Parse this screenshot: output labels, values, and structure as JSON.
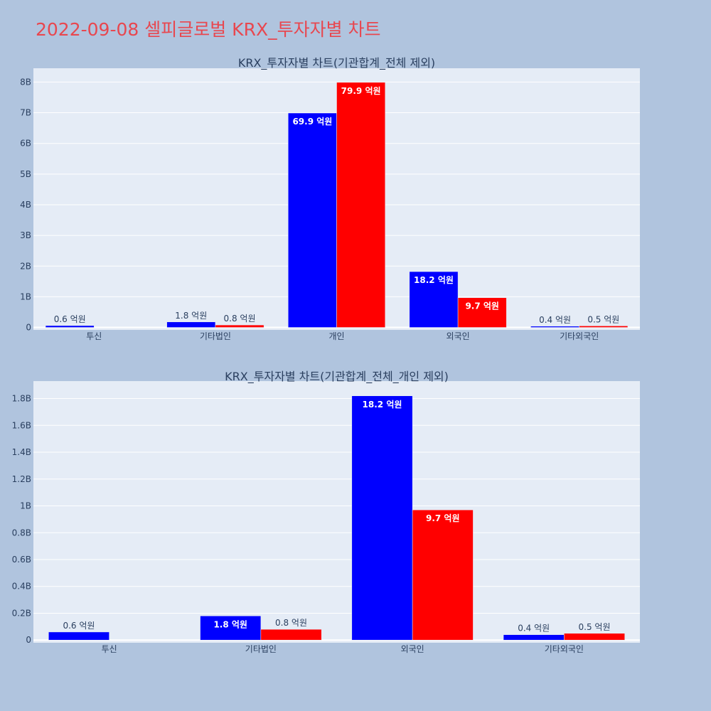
{
  "title": "2022-09-08 셀피글로벌 KRX_투자자별 차트",
  "colors": {
    "page_bg": "#b0c4de",
    "plot_bg": "#e5ecf6",
    "grid": "#ffffff",
    "series_a": "#0000ff",
    "series_b": "#ff0000",
    "title": "#e8474f",
    "text": "#2a3f5f"
  },
  "chart_data": [
    {
      "type": "bar",
      "title": "KRX_투자자별 차트(기관합계_전체 제외)",
      "categories": [
        "투신",
        "기타법인",
        "개인",
        "외국인",
        "기타외국인"
      ],
      "ylim": [
        -0.08,
        8.45
      ],
      "ytick_values": [
        0,
        1,
        2,
        3,
        4,
        5,
        6,
        7,
        8
      ],
      "ytick_labels": [
        "0",
        "1B",
        "2B",
        "3B",
        "4B",
        "5B",
        "6B",
        "7B",
        "8B"
      ],
      "value_unit": "B",
      "grid": true,
      "series": [
        {
          "values": [
            0.06,
            0.18,
            6.99,
            1.82,
            0.04
          ],
          "labels": [
            "0.6 억원",
            "1.8 억원",
            "69.9 억원",
            "18.2 억원",
            "0.4 억원"
          ],
          "color": "#0000ff"
        },
        {
          "values": [
            0,
            0.08,
            7.99,
            0.97,
            0.05
          ],
          "labels": [
            "",
            "0.8 억원",
            "79.9 억원",
            "9.7 억원",
            "0.5 억원"
          ],
          "color": "#ff0000"
        }
      ]
    },
    {
      "type": "bar",
      "title": "KRX_투자자별 차트(기관합계_전체_개인 제외)",
      "categories": [
        "투신",
        "기타법인",
        "외국인",
        "기타외국인"
      ],
      "ylim": [
        -0.02,
        1.93
      ],
      "ytick_values": [
        0,
        0.2,
        0.4,
        0.6,
        0.8,
        1,
        1.2,
        1.4,
        1.6,
        1.8
      ],
      "ytick_labels": [
        "0",
        "0.2B",
        "0.4B",
        "0.6B",
        "0.8B",
        "1B",
        "1.2B",
        "1.4B",
        "1.6B",
        "1.8B"
      ],
      "value_unit": "B",
      "grid": true,
      "series": [
        {
          "values": [
            0.06,
            0.18,
            1.82,
            0.04
          ],
          "labels": [
            "0.6 억원",
            "1.8 억원",
            "18.2 억원",
            "0.4 억원"
          ],
          "color": "#0000ff"
        },
        {
          "values": [
            0,
            0.08,
            0.97,
            0.05
          ],
          "labels": [
            "",
            "0.8 억원",
            "9.7 억원",
            "0.5 억원"
          ],
          "color": "#ff0000"
        }
      ]
    }
  ]
}
